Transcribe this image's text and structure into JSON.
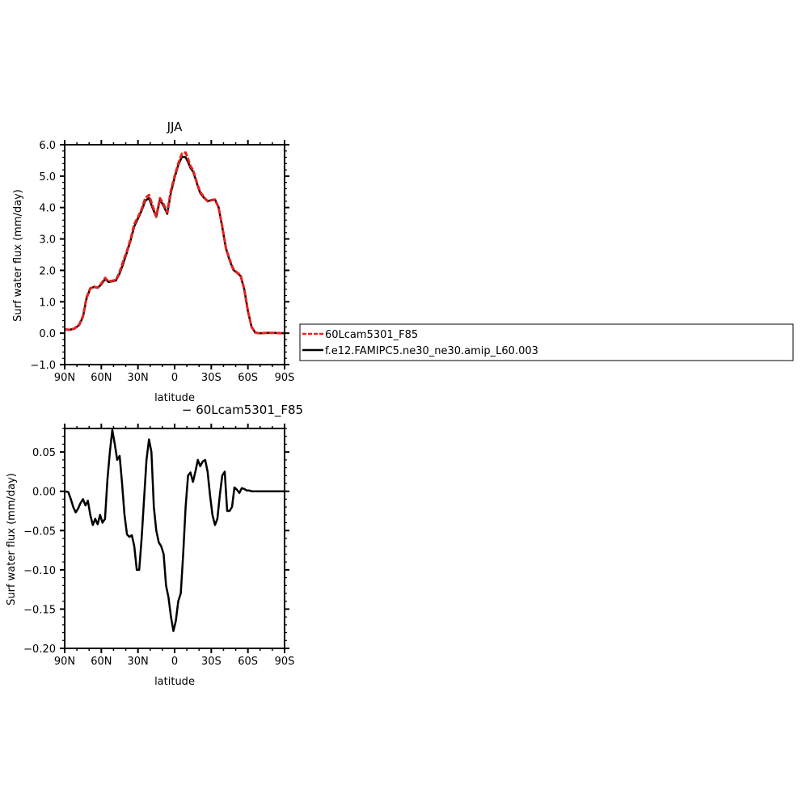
{
  "chart_data": [
    {
      "type": "line",
      "title": "JJA",
      "xlabel": "latitude",
      "ylabel": "Surf water flux (mm/day)",
      "xlim": [
        90,
        -90
      ],
      "ylim": [
        -1.0,
        6.0
      ],
      "x_tick_values": [
        90,
        60,
        30,
        0,
        -30,
        -60,
        -90
      ],
      "x_tick_labels": [
        "90N",
        "60N",
        "30N",
        "0",
        "30S",
        "60S",
        "90S"
      ],
      "y_tick_values": [
        -1.0,
        0.0,
        1.0,
        2.0,
        3.0,
        4.0,
        5.0,
        6.0
      ],
      "y_tick_labels": [
        "−1.0",
        "0.0",
        "1.0",
        "2.0",
        "3.0",
        "4.0",
        "5.0",
        "6.0"
      ],
      "legend_position": "right",
      "series": [
        {
          "name": "60Lcam5301_F85",
          "color": "#e8211d",
          "style": "dashed",
          "x": [
            90,
            86,
            82,
            78,
            75,
            72,
            69,
            66,
            63,
            60,
            57,
            54,
            51,
            48,
            45,
            42,
            39,
            36,
            33,
            30,
            27,
            24,
            21,
            18,
            15,
            12,
            9,
            6,
            3,
            0,
            -3,
            -6,
            -9,
            -11,
            -13,
            -15,
            -17,
            -19,
            -21,
            -24,
            -27,
            -30,
            -33,
            -36,
            -39,
            -42,
            -45,
            -48,
            -51,
            -54,
            -57,
            -60,
            -63,
            -66,
            -69,
            -72,
            -75,
            -78,
            -82,
            -86,
            -90
          ],
          "y": [
            0.12,
            0.11,
            0.15,
            0.28,
            0.55,
            1.15,
            1.43,
            1.48,
            1.45,
            1.58,
            1.76,
            1.65,
            1.67,
            1.7,
            1.95,
            2.3,
            2.62,
            3.0,
            3.47,
            3.7,
            3.95,
            4.3,
            4.4,
            4.05,
            3.72,
            4.3,
            4.1,
            3.85,
            4.55,
            5.0,
            5.4,
            5.72,
            5.75,
            5.55,
            5.32,
            5.2,
            4.95,
            4.7,
            4.5,
            4.33,
            4.2,
            4.23,
            4.25,
            4.0,
            3.4,
            2.7,
            2.35,
            2.05,
            1.93,
            1.85,
            1.4,
            0.7,
            0.2,
            0.02,
            0.0,
            0.0,
            0.01,
            0.01,
            0.01,
            0.0,
            0.0
          ]
        },
        {
          "name": "f.e12.FAMIPC5.ne30_ne30.amip_L60.003",
          "color": "#000000",
          "style": "solid",
          "x": [
            90,
            86,
            82,
            78,
            75,
            72,
            69,
            66,
            63,
            60,
            57,
            54,
            51,
            48,
            45,
            42,
            39,
            36,
            33,
            30,
            27,
            24,
            21,
            18,
            15,
            12,
            9,
            6,
            3,
            0,
            -3,
            -6,
            -9,
            -11,
            -13,
            -15,
            -17,
            -19,
            -21,
            -24,
            -27,
            -30,
            -33,
            -36,
            -39,
            -42,
            -45,
            -48,
            -51,
            -54,
            -57,
            -60,
            -63,
            -66,
            -69,
            -72,
            -75,
            -78,
            -82,
            -86,
            -90
          ],
          "y": [
            0.12,
            0.11,
            0.14,
            0.26,
            0.52,
            1.12,
            1.42,
            1.47,
            1.44,
            1.55,
            1.72,
            1.63,
            1.65,
            1.68,
            1.9,
            2.22,
            2.58,
            2.95,
            3.4,
            3.65,
            3.9,
            4.22,
            4.3,
            3.98,
            3.7,
            4.25,
            4.05,
            3.8,
            4.48,
            4.95,
            5.35,
            5.62,
            5.6,
            5.45,
            5.26,
            5.15,
            4.92,
            4.67,
            4.46,
            4.31,
            4.2,
            4.24,
            4.26,
            4.01,
            3.38,
            2.7,
            2.32,
            2.02,
            1.92,
            1.82,
            1.4,
            0.7,
            0.2,
            0.02,
            0.0,
            0.0,
            0.01,
            0.01,
            0.01,
            0.0,
            0.0
          ]
        }
      ]
    },
    {
      "type": "line",
      "title": "− 60Lcam5301_F85",
      "xlabel": "latitude",
      "ylabel": "Surf water flux (mm/day)",
      "xlim": [
        90,
        -90
      ],
      "ylim": [
        -0.2,
        0.08
      ],
      "x_tick_values": [
        90,
        60,
        30,
        0,
        -30,
        -60,
        -90
      ],
      "x_tick_labels": [
        "90N",
        "60N",
        "30N",
        "0",
        "30S",
        "60S",
        "90S"
      ],
      "y_tick_values": [
        -0.2,
        -0.15,
        -0.1,
        -0.05,
        0.0,
        0.05
      ],
      "y_tick_labels": [
        "−0.20",
        "−0.15",
        "−0.10",
        "−0.05",
        "0.00",
        "0.05"
      ],
      "series": [
        {
          "color": "#000000",
          "style": "solid",
          "x": [
            90,
            87,
            85,
            83,
            81,
            79,
            77,
            75,
            73,
            71,
            69,
            67,
            65,
            63,
            61,
            59,
            57,
            55,
            53,
            51,
            49,
            47,
            45,
            43,
            41,
            39,
            37,
            35,
            33,
            31,
            29,
            27,
            25,
            23,
            21,
            19,
            17,
            15,
            13,
            11,
            9,
            7,
            5,
            3,
            1,
            -1,
            -3,
            -5,
            -7,
            -9,
            -11,
            -13,
            -15,
            -17,
            -19,
            -21,
            -23,
            -25,
            -27,
            -29,
            -31,
            -33,
            -35,
            -37,
            -39,
            -41,
            -43,
            -45,
            -47,
            -49,
            -51,
            -53,
            -55,
            -57,
            -59,
            -61,
            -63,
            -65,
            -67,
            -69,
            -71,
            -73,
            -75,
            -77,
            -79,
            -81,
            -83,
            -85,
            -87,
            -90
          ],
          "y": [
            0.0,
            -0.001,
            -0.01,
            -0.02,
            -0.027,
            -0.022,
            -0.015,
            -0.01,
            -0.018,
            -0.012,
            -0.03,
            -0.043,
            -0.035,
            -0.042,
            -0.03,
            -0.04,
            -0.035,
            0.015,
            0.05,
            0.078,
            0.06,
            0.04,
            0.045,
            0.01,
            -0.03,
            -0.055,
            -0.058,
            -0.056,
            -0.07,
            -0.1,
            -0.1,
            -0.06,
            -0.01,
            0.04,
            0.066,
            0.05,
            -0.02,
            -0.05,
            -0.065,
            -0.07,
            -0.08,
            -0.12,
            -0.135,
            -0.16,
            -0.178,
            -0.165,
            -0.14,
            -0.13,
            -0.08,
            -0.02,
            0.02,
            0.024,
            0.012,
            0.025,
            0.04,
            0.032,
            0.038,
            0.04,
            0.025,
            -0.005,
            -0.03,
            -0.043,
            -0.035,
            -0.005,
            0.02,
            0.025,
            -0.025,
            -0.025,
            -0.02,
            0.005,
            0.002,
            -0.002,
            0.004,
            0.003,
            0.001,
            0.001,
            0.0,
            0.0,
            0.0,
            0.0,
            0.0,
            0.0,
            0.0,
            0.0,
            0.0,
            0.0,
            0.0,
            0.0,
            0.0,
            0.0
          ]
        }
      ]
    }
  ]
}
